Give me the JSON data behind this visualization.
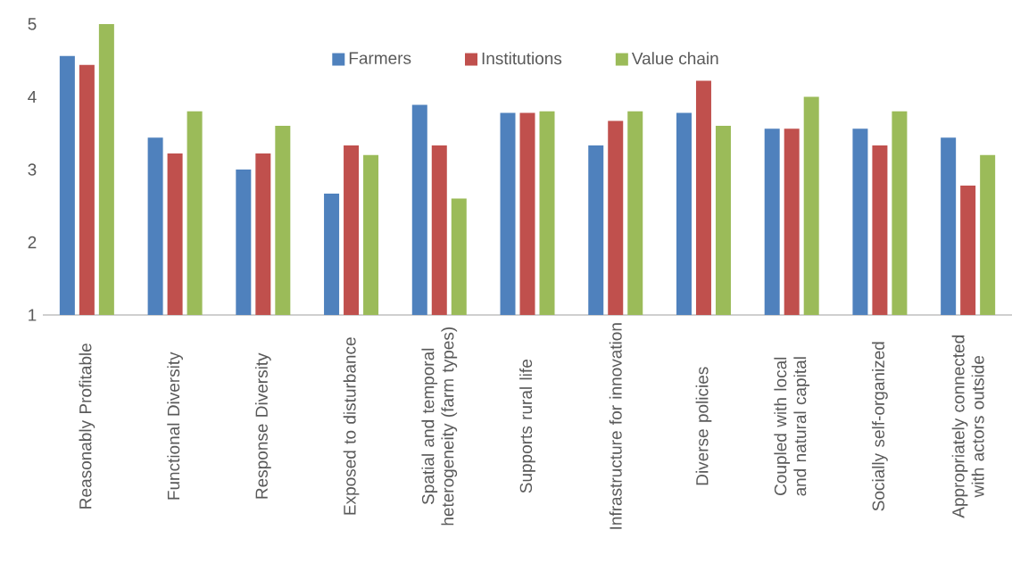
{
  "chart_data": {
    "type": "bar",
    "categories": [
      "Reasonably Profitable",
      "Functional Diversity",
      "Response Diversity",
      "Exposed to disturbance",
      "Spatial and temporal heterogeneity (farm types)",
      "Supports rural life",
      "Infrastructure for innovation",
      "Diverse policies",
      "Coupled with local and natural capital",
      "Socially self-organized",
      "Appropriately connected with actors outside"
    ],
    "series": [
      {
        "name": "Farmers",
        "color": "#4f81bd",
        "values": [
          4.56,
          3.44,
          3.0,
          2.67,
          3.89,
          3.78,
          3.33,
          3.78,
          3.56,
          3.56,
          3.44
        ]
      },
      {
        "name": "Institutions",
        "color": "#c0504d",
        "values": [
          4.44,
          3.22,
          3.22,
          3.33,
          3.33,
          3.78,
          3.67,
          4.22,
          3.56,
          3.33,
          2.78
        ]
      },
      {
        "name": "Value chain",
        "color": "#9bbb59",
        "values": [
          5.0,
          3.8,
          3.6,
          3.2,
          2.6,
          3.8,
          3.8,
          3.6,
          4.0,
          3.8,
          3.2
        ]
      }
    ],
    "ylim": [
      1,
      5
    ],
    "yticks": [
      1,
      2,
      3,
      4,
      5
    ],
    "legend": "top"
  }
}
